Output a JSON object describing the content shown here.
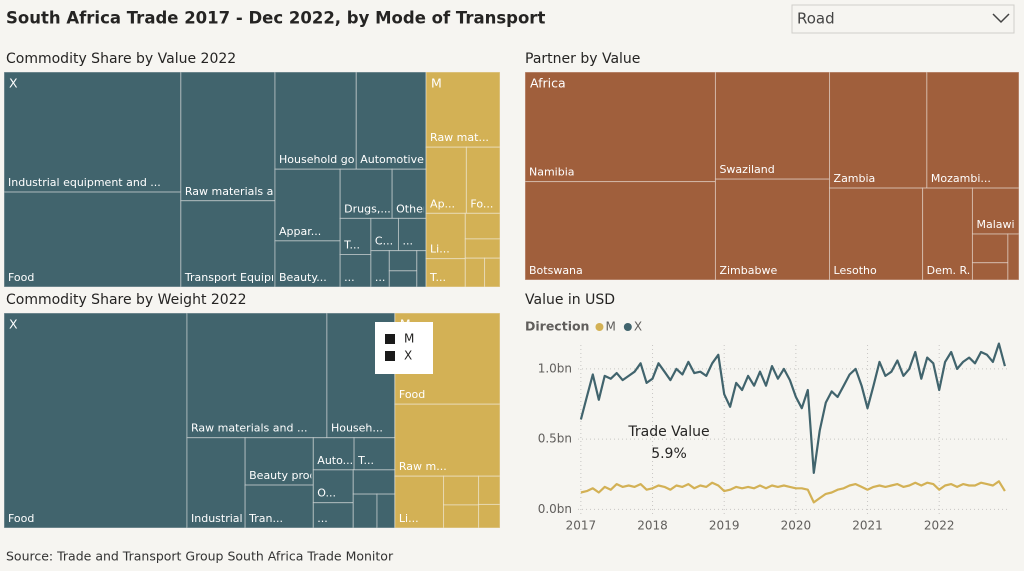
{
  "title": "South Africa Trade 2017 - Dec 2022, by Mode of Transport",
  "filter": "Road",
  "source": "Source: Trade and Transport Group South Africa Trade Monitor",
  "chart_data": [
    {
      "type": "treemap",
      "title": "Commodity Share by Value 2022",
      "groups": [
        {
          "name": "X",
          "color": "#41646d",
          "children": [
            {
              "name": "Industrial equipment and ...",
              "value": 19.1
            },
            {
              "name": "Food",
              "value": 15.1
            },
            {
              "name": "Raw materials and...",
              "value": 10.9
            },
            {
              "name": "Transport Equipm...",
              "value": 7.3
            },
            {
              "name": "Household goods",
              "value": 7.1
            },
            {
              "name": "Automotive",
              "value": 6.1
            },
            {
              "name": "Appar...",
              "value": 4.2
            },
            {
              "name": "Beauty...",
              "value": 2.7
            },
            {
              "name": "Drugs,...",
              "value": 2.3
            },
            {
              "name": "Other",
              "value": 1.5
            },
            {
              "name": "T...",
              "value": 1.0
            },
            {
              "name": "...",
              "value": 0.9
            },
            {
              "name": "C...",
              "value": 0.8
            },
            {
              "name": "...",
              "value": 0.8
            },
            {
              "name": "...",
              "value": 0.6
            },
            {
              "name": null,
              "value": 0.5
            },
            {
              "name": null,
              "value": 0.4
            },
            {
              "name": null,
              "value": 0.3
            }
          ]
        },
        {
          "name": "M",
          "color": "#d3b155",
          "children": [
            {
              "name": "Raw mat...",
              "value": 5.0
            },
            {
              "name": "Ap...",
              "value": 2.4
            },
            {
              "name": "Fo...",
              "value": 2.0
            },
            {
              "name": "Li...",
              "value": 1.6
            },
            {
              "name": "T...",
              "value": 1.0
            },
            {
              "name": null,
              "value": 0.8
            },
            {
              "name": null,
              "value": 0.6
            },
            {
              "name": null,
              "value": 0.5
            },
            {
              "name": null,
              "value": 0.4
            }
          ]
        }
      ]
    },
    {
      "type": "treemap",
      "title": "Partner by Value",
      "groups": [
        {
          "name": "Africa",
          "color": "#a05f3c",
          "children": [
            {
              "name": "Namibia",
              "value": 20.5
            },
            {
              "name": "Botswana",
              "value": 18.4
            },
            {
              "name": "Swaziland",
              "value": 12.0
            },
            {
              "name": "Zimbabwe",
              "value": 11.3
            },
            {
              "name": "Zambia",
              "value": 11.1
            },
            {
              "name": "Mozambi...",
              "value": 10.5
            },
            {
              "name": "Lesotho",
              "value": 8.4
            },
            {
              "name": "Dem. R...",
              "value": 4.5
            },
            {
              "name": "Malawi",
              "value": 2.1
            },
            {
              "name": null,
              "value": 1.0
            },
            {
              "name": null,
              "value": 0.6
            },
            {
              "name": null,
              "value": 0.5
            }
          ]
        }
      ]
    },
    {
      "type": "treemap",
      "title": "Commodity Share by Weight 2022",
      "legend_color": "#1a1a1a",
      "groups": [
        {
          "name": "X",
          "color": "#41646d",
          "children": [
            {
              "name": "Food",
              "value": 39.0
            },
            {
              "name": "Raw materials and ...",
              "value": 17.3
            },
            {
              "name": "Househ...",
              "value": 8.4
            },
            {
              "name": "Industrial equ...",
              "value": 5.2
            },
            {
              "name": "Beauty produ...",
              "value": 3.2
            },
            {
              "name": "Tran...",
              "value": 2.9
            },
            {
              "name": "Auto...",
              "value": 1.3
            },
            {
              "name": "T...",
              "value": 1.3
            },
            {
              "name": "O...",
              "value": 1.3
            },
            {
              "name": "...",
              "value": 1.0
            },
            {
              "name": null,
              "value": 1.0
            },
            {
              "name": null,
              "value": 0.8
            },
            {
              "name": null,
              "value": 0.6
            }
          ]
        },
        {
          "name": "M",
          "color": "#d3b155",
          "children": [
            {
              "name": "Food",
              "value": 9.5
            },
            {
              "name": "Raw m...",
              "value": 7.5
            },
            {
              "name": "Li...",
              "value": 2.5
            },
            {
              "name": null,
              "value": 1.0
            },
            {
              "name": null,
              "value": 0.8
            },
            {
              "name": null,
              "value": 0.6
            },
            {
              "name": null,
              "value": 0.5
            }
          ]
        }
      ]
    },
    {
      "type": "line",
      "title": "Value in USD",
      "legend_title": "Direction",
      "annotation": [
        "Trade Value",
        "5.9%"
      ],
      "x": [
        2017,
        2017.083,
        2017.167,
        2017.25,
        2017.333,
        2017.417,
        2017.5,
        2017.583,
        2017.667,
        2017.75,
        2017.833,
        2017.917,
        2018,
        2018.083,
        2018.167,
        2018.25,
        2018.333,
        2018.417,
        2018.5,
        2018.583,
        2018.667,
        2018.75,
        2018.833,
        2018.917,
        2019,
        2019.083,
        2019.167,
        2019.25,
        2019.333,
        2019.417,
        2019.5,
        2019.583,
        2019.667,
        2019.75,
        2019.833,
        2019.917,
        2020,
        2020.083,
        2020.167,
        2020.25,
        2020.333,
        2020.417,
        2020.5,
        2020.583,
        2020.667,
        2020.75,
        2020.833,
        2020.917,
        2021,
        2021.083,
        2021.167,
        2021.25,
        2021.333,
        2021.417,
        2021.5,
        2021.583,
        2021.667,
        2021.75,
        2021.833,
        2021.917,
        2022,
        2022.083,
        2022.167,
        2022.25,
        2022.333,
        2022.417,
        2022.5,
        2022.583,
        2022.667,
        2022.75,
        2022.833,
        2022.917
      ],
      "series": [
        {
          "name": "M",
          "color": "#d3b155",
          "values": [
            0.12,
            0.13,
            0.15,
            0.12,
            0.16,
            0.14,
            0.18,
            0.16,
            0.17,
            0.16,
            0.18,
            0.14,
            0.15,
            0.17,
            0.16,
            0.14,
            0.17,
            0.16,
            0.18,
            0.15,
            0.17,
            0.16,
            0.19,
            0.17,
            0.13,
            0.14,
            0.16,
            0.15,
            0.16,
            0.15,
            0.17,
            0.15,
            0.17,
            0.16,
            0.17,
            0.16,
            0.15,
            0.15,
            0.14,
            0.05,
            0.08,
            0.11,
            0.12,
            0.14,
            0.15,
            0.17,
            0.18,
            0.16,
            0.14,
            0.16,
            0.17,
            0.16,
            0.17,
            0.18,
            0.16,
            0.17,
            0.19,
            0.17,
            0.19,
            0.18,
            0.14,
            0.17,
            0.18,
            0.16,
            0.18,
            0.17,
            0.17,
            0.19,
            0.18,
            0.17,
            0.2,
            0.13
          ]
        },
        {
          "name": "X",
          "color": "#41646d",
          "values": [
            0.64,
            0.8,
            0.96,
            0.78,
            0.95,
            0.93,
            0.97,
            0.92,
            0.95,
            0.98,
            1.04,
            0.9,
            0.93,
            1.04,
            0.98,
            0.92,
            1.0,
            0.96,
            1.05,
            0.97,
            0.98,
            0.95,
            1.04,
            1.1,
            0.82,
            0.73,
            0.9,
            0.85,
            0.95,
            0.88,
            0.98,
            0.88,
            1.02,
            0.93,
            1.0,
            0.92,
            0.8,
            0.72,
            0.85,
            0.26,
            0.56,
            0.76,
            0.84,
            0.8,
            0.88,
            0.96,
            1.0,
            0.88,
            0.72,
            0.88,
            1.05,
            0.95,
            0.98,
            1.06,
            0.95,
            1.0,
            1.12,
            0.93,
            1.08,
            1.04,
            0.85,
            1.05,
            1.12,
            1.0,
            1.05,
            1.08,
            1.04,
            1.12,
            1.1,
            1.05,
            1.18,
            1.02
          ]
        }
      ],
      "xlim": [
        2016.96,
        2022.96
      ],
      "xticks": [
        2017,
        2018,
        2019,
        2020,
        2021,
        2022
      ],
      "ylim": [
        -0.04,
        1.17
      ],
      "yticks": [
        {
          "value": 0,
          "label": "0.0bn"
        },
        {
          "value": 0.5,
          "label": "0.5bn"
        },
        {
          "value": 1,
          "label": "1.0bn"
        }
      ],
      "grid": true
    }
  ]
}
